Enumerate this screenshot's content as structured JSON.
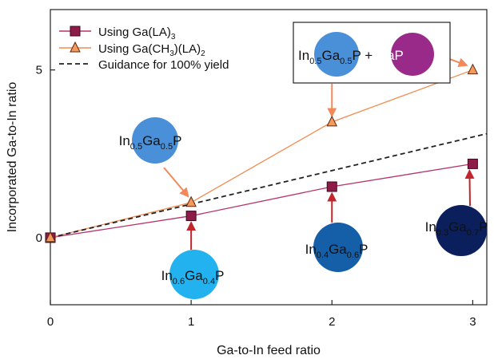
{
  "chart_data": {
    "type": "line",
    "xlabel": "Ga-to-In feed ratio",
    "ylabel": "Incorporated Ga-to-In ratio",
    "xlim": [
      0,
      3.1
    ],
    "ylim": [
      -2.0,
      6.8
    ],
    "x_ticks": [
      "0",
      "1",
      "2",
      "3"
    ],
    "y_ticks": [
      "0",
      "5"
    ],
    "legend_position": "top-left",
    "series": [
      {
        "name": "Using Ga(LA)",
        "name_sub": "3",
        "x": [
          0,
          1,
          2,
          3
        ],
        "y": [
          0,
          0.65,
          1.52,
          2.2
        ],
        "color": "#b5336b",
        "marker": "square",
        "marker_fill": "#8e1c49"
      },
      {
        "name": "Using Ga(CH",
        "name_sub": "3",
        "name_mid": ")(LA)",
        "name_sub2": "2",
        "x": [
          0,
          1,
          2,
          3
        ],
        "y": [
          0,
          1.05,
          3.45,
          5.0
        ],
        "color": "#f28c50",
        "marker": "triangle",
        "marker_fill": "#f59a5a"
      },
      {
        "name": "Guidance for 100% yield",
        "x": [
          0,
          3.1
        ],
        "y": [
          0,
          3.1
        ],
        "color": "#222222",
        "dashed": true
      }
    ],
    "annotations": [
      {
        "id": "a1",
        "main1": "In",
        "sub1": "0.5",
        "main2": "Ga",
        "sub2": "0.5",
        "tail": "P",
        "circle_color": "#4a90d9"
      },
      {
        "id": "a2",
        "main1": "In",
        "sub1": "0.5",
        "main2": "Ga",
        "sub2": "0.5",
        "tail": "P + ",
        "extra": "GaP",
        "circle_color": "#4a90d9",
        "extra_color": "#9a2a8a"
      },
      {
        "id": "a3",
        "main1": "In",
        "sub1": "0.6",
        "main2": "Ga",
        "sub2": "0.4",
        "tail": "P",
        "circle_color": "#21b2ef"
      },
      {
        "id": "a4",
        "main1": "In",
        "sub1": "0.4",
        "main2": "Ga",
        "sub2": "0.6",
        "tail": "P",
        "circle_color": "#155fa8"
      },
      {
        "id": "a5",
        "main1": "In",
        "sub1": "0.3",
        "main2": "Ga",
        "sub2": "0.7",
        "tail": "P",
        "circle_color": "#0b1f5c"
      }
    ]
  }
}
